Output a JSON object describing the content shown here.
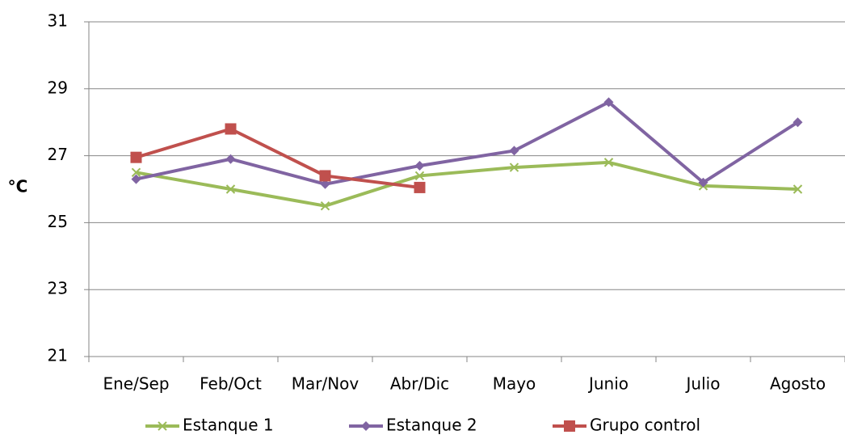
{
  "chart_data": {
    "type": "line",
    "ylabel": "°C",
    "categories": [
      "Ene/Sep",
      "Feb/Oct",
      "Mar/Nov",
      "Abr/Dic",
      "Mayo",
      "Junio",
      "Julio",
      "Agosto"
    ],
    "series": [
      {
        "name": "Estanque 1",
        "color": "#9bbb59",
        "marker": "x",
        "values": [
          26.5,
          26.0,
          25.5,
          26.4,
          26.65,
          26.8,
          26.1,
          26.0
        ]
      },
      {
        "name": "Estanque 2",
        "color": "#8064a2",
        "marker": "diamond",
        "values": [
          26.3,
          26.9,
          26.15,
          26.7,
          27.15,
          28.6,
          26.2,
          28.0
        ]
      },
      {
        "name": "Grupo control",
        "color": "#c0504d",
        "marker": "square",
        "values": [
          26.95,
          27.8,
          26.4,
          26.05,
          null,
          null,
          null,
          null
        ]
      }
    ],
    "ylim": [
      21,
      31
    ],
    "yticks": [
      21,
      23,
      25,
      27,
      29,
      31
    ],
    "grid": true,
    "legend": "bottom"
  }
}
